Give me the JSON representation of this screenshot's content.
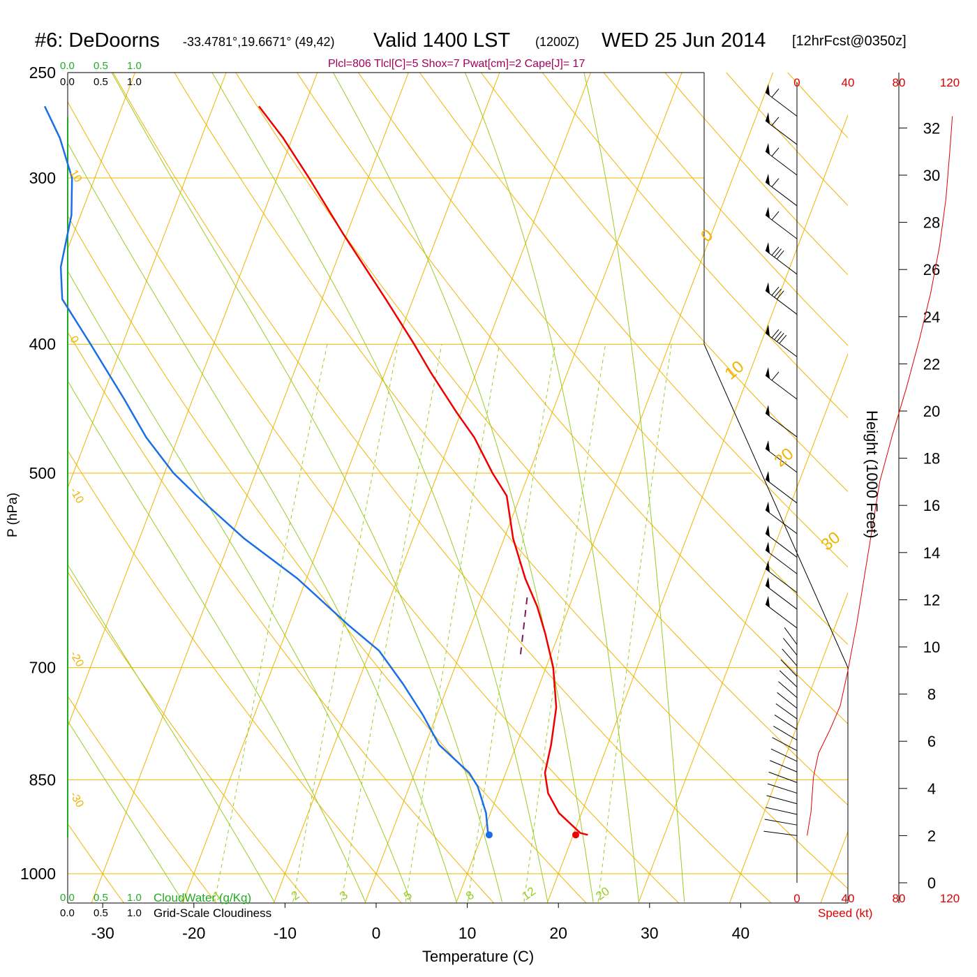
{
  "header": {
    "station": "#6: DeDoorns",
    "coords": "-33.4781°,19.6671° (49,42)",
    "valid": "Valid 1400 LST",
    "zulu": "(1200Z)",
    "date": "WED 25 Jun 2014",
    "forecast": "[12hrFcst@0350z]"
  },
  "indices": "Plcl=806 Tlcl[C]=5 Shox=7 Pwat[cm]=2 Cape[J]= 17",
  "cloud_scale": {
    "ticks": [
      "0.0",
      "0.5",
      "1.0"
    ],
    "cloudwater_label": "CloudWater (g/Kg)",
    "cloudiness_label": "Grid-Scale Cloudiness"
  },
  "colors": {
    "temperature": "#ee0000",
    "dewpoint": "#1a6ee6",
    "isotherm_isobar": "#f0b400",
    "dry_adiabat": "#f0b400",
    "moist_adiabat": "#99cc22",
    "mixing_ratio": "#99cc22",
    "cloud_axis": "#22aa22",
    "index_text": "#a0005a",
    "wind_axis": "#dd0000",
    "parcel": "#7a1a5a"
  },
  "chart_data": {
    "type": "skew-t log-p sounding",
    "xlabel": "Temperature (C)",
    "ylabel": "P (hPa)",
    "x_ticks": [
      -30,
      -20,
      -10,
      0,
      10,
      20,
      30,
      40
    ],
    "y_ticks": [
      250,
      300,
      400,
      500,
      700,
      850,
      1000
    ],
    "isotherm_labels_skewed": [
      "10",
      "0",
      "-10",
      "-20",
      "-30"
    ],
    "isotherm_labels_right": [
      "0",
      "10",
      "20",
      "30"
    ],
    "mixing_ratio_labels": [
      "1",
      "2",
      "3",
      "5",
      "8",
      "12",
      "20"
    ],
    "temperature_profile": [
      {
        "p": 935,
        "t": 21.6
      },
      {
        "p": 932,
        "t": 20.7
      },
      {
        "p": 900,
        "t": 17.5
      },
      {
        "p": 870,
        "t": 15.5
      },
      {
        "p": 840,
        "t": 14.3
      },
      {
        "p": 800,
        "t": 13.8
      },
      {
        "p": 750,
        "t": 12.8
      },
      {
        "p": 700,
        "t": 10.8
      },
      {
        "p": 660,
        "t": 8.5
      },
      {
        "p": 630,
        "t": 6.5
      },
      {
        "p": 600,
        "t": 4.0
      },
      {
        "p": 560,
        "t": 1.0
      },
      {
        "p": 520,
        "t": -1.5
      },
      {
        "p": 500,
        "t": -4.0
      },
      {
        "p": 470,
        "t": -7.5
      },
      {
        "p": 450,
        "t": -10.5
      },
      {
        "p": 420,
        "t": -15.0
      },
      {
        "p": 400,
        "t": -18.0
      },
      {
        "p": 370,
        "t": -23.0
      },
      {
        "p": 330,
        "t": -30.5
      },
      {
        "p": 300,
        "t": -36.5
      },
      {
        "p": 280,
        "t": -41.0
      },
      {
        "p": 265,
        "t": -45.0
      }
    ],
    "dewpoint_profile": [
      {
        "p": 935,
        "t": 10.8
      },
      {
        "p": 930,
        "t": 10.5
      },
      {
        "p": 900,
        "t": 9.5
      },
      {
        "p": 860,
        "t": 7.5
      },
      {
        "p": 840,
        "t": 6.0
      },
      {
        "p": 800,
        "t": 1.5
      },
      {
        "p": 760,
        "t": -1.5
      },
      {
        "p": 720,
        "t": -5.0
      },
      {
        "p": 680,
        "t": -9.0
      },
      {
        "p": 650,
        "t": -13.5
      },
      {
        "p": 600,
        "t": -21.0
      },
      {
        "p": 560,
        "t": -28.5
      },
      {
        "p": 520,
        "t": -35.5
      },
      {
        "p": 500,
        "t": -39.0
      },
      {
        "p": 470,
        "t": -43.5
      },
      {
        "p": 440,
        "t": -47.5
      },
      {
        "p": 400,
        "t": -53.5
      },
      {
        "p": 370,
        "t": -58.5
      },
      {
        "p": 350,
        "t": -60.0
      },
      {
        "p": 320,
        "t": -61.0
      },
      {
        "p": 300,
        "t": -62.5
      },
      {
        "p": 280,
        "t": -65.5
      },
      {
        "p": 265,
        "t": -68.5
      }
    ],
    "parcel_segment": [
      {
        "p": 620,
        "t": 5.0
      },
      {
        "p": 690,
        "t": 6.8
      }
    ],
    "surface_markers": {
      "temperature": 21.9,
      "dewpoint": 12.4,
      "p": 935
    },
    "wind": {
      "speed_axis_ticks": [
        0,
        40,
        80,
        120
      ],
      "speed_axis_label": "Speed (kt)",
      "height_axis_label": "Height (1000 Feet)",
      "height_ticks": [
        0,
        2,
        4,
        6,
        8,
        10,
        12,
        14,
        16,
        18,
        20,
        22,
        24,
        26,
        28,
        30,
        32
      ],
      "speed_profile": [
        {
          "h": 2.0,
          "s": 8
        },
        {
          "h": 3.0,
          "s": 11
        },
        {
          "h": 4.5,
          "s": 13
        },
        {
          "h": 5.5,
          "s": 17
        },
        {
          "h": 6.5,
          "s": 26
        },
        {
          "h": 7.5,
          "s": 34
        },
        {
          "h": 9.0,
          "s": 40
        },
        {
          "h": 11.0,
          "s": 47
        },
        {
          "h": 13.0,
          "s": 53
        },
        {
          "h": 15.0,
          "s": 59
        },
        {
          "h": 17.0,
          "s": 65
        },
        {
          "h": 19.0,
          "s": 75
        },
        {
          "h": 21.0,
          "s": 86
        },
        {
          "h": 23.0,
          "s": 96
        },
        {
          "h": 25.0,
          "s": 105
        },
        {
          "h": 27.0,
          "s": 112
        },
        {
          "h": 29.0,
          "s": 117
        },
        {
          "h": 31.0,
          "s": 120
        },
        {
          "h": 32.5,
          "s": 122
        }
      ],
      "barbs": [
        {
          "h": 32.5,
          "speed": 60
        },
        {
          "h": 31.3,
          "speed": 60
        },
        {
          "h": 30.0,
          "speed": 60
        },
        {
          "h": 28.7,
          "speed": 60
        },
        {
          "h": 27.3,
          "speed": 60
        },
        {
          "h": 25.8,
          "speed": 85
        },
        {
          "h": 24.1,
          "speed": 85
        },
        {
          "h": 22.3,
          "speed": 90
        },
        {
          "h": 20.5,
          "speed": 65
        },
        {
          "h": 18.9,
          "speed": 55
        },
        {
          "h": 17.4,
          "speed": 55
        },
        {
          "h": 16.1,
          "speed": 55
        },
        {
          "h": 14.8,
          "speed": 50
        },
        {
          "h": 13.8,
          "speed": 50
        },
        {
          "h": 13.1,
          "speed": 50
        },
        {
          "h": 12.3,
          "speed": 50
        },
        {
          "h": 11.6,
          "speed": 50
        },
        {
          "h": 10.8,
          "speed": 50
        }
      ]
    }
  }
}
